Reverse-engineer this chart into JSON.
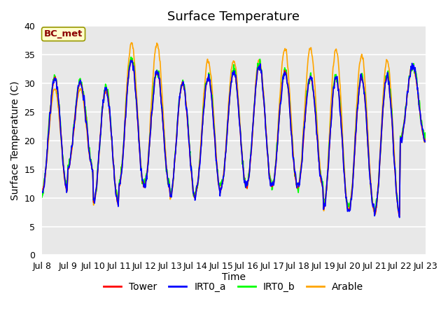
{
  "title": "Surface Temperature",
  "ylabel": "Surface Temperature (C)",
  "xlabel": "Time",
  "ylim": [
    0,
    40
  ],
  "yticks": [
    0,
    5,
    10,
    15,
    20,
    25,
    30,
    35,
    40
  ],
  "bg_color": "#e8e8e8",
  "fig_color": "#ffffff",
  "annotation_text": "BC_met",
  "annotation_color": "#8B0000",
  "annotation_bg": "#ffffcc",
  "legend_labels": [
    "Tower",
    "IRT0_a",
    "IRT0_b",
    "Arable"
  ],
  "line_colors": [
    "red",
    "blue",
    "lime",
    "orange"
  ],
  "n_days": 15,
  "samples_per_day": 96,
  "start_day": 8,
  "title_fontsize": 13,
  "axis_fontsize": 10,
  "tick_fontsize": 9
}
